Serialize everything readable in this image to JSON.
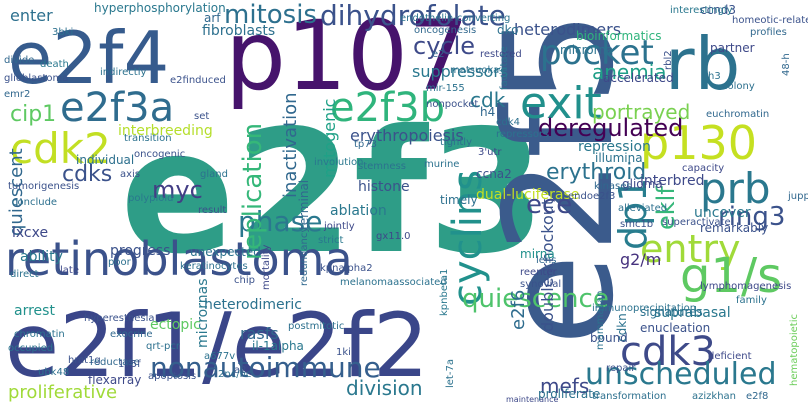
{
  "word_cloud": {
    "words": [
      {
        "text": "e2f3",
        "color": "#2e9d87"
      },
      {
        "text": "e2f5",
        "color": "#3b5b8c"
      },
      {
        "text": "p107",
        "color": "#46136c"
      },
      {
        "text": "e2f4",
        "color": "#365b8d"
      },
      {
        "text": "e2f1/e2f2",
        "color": "#3a4689"
      },
      {
        "text": "retinoblastoma",
        "color": "#3b528b"
      },
      {
        "text": "rb",
        "color": "#2c728e"
      },
      {
        "text": "e2f3a",
        "color": "#2f6c8e"
      },
      {
        "text": "e2f3b",
        "color": "#2fb47c"
      },
      {
        "text": "exit",
        "color": "#21908c"
      },
      {
        "text": "cdk2",
        "color": "#c2df23"
      },
      {
        "text": "p130",
        "color": "#c5e021"
      },
      {
        "text": "prb",
        "color": "#2a788e"
      },
      {
        "text": "pocket",
        "color": "#2c728e"
      },
      {
        "text": "entry",
        "color": "#a0da39"
      },
      {
        "text": "g1/s",
        "color": "#5ec962"
      },
      {
        "text": "cdk3",
        "color": "#3e4a89"
      },
      {
        "text": "unscheduled",
        "color": "#2a788e"
      },
      {
        "text": "dihydrofolate",
        "color": "#3b528b"
      },
      {
        "text": "cyclins",
        "color": "#21918c"
      },
      {
        "text": "mitosis",
        "color": "#2d708e"
      },
      {
        "text": "deregulated",
        "color": "#440154"
      },
      {
        "text": "nonautoimmune",
        "color": "#355f8d"
      },
      {
        "text": "quiescence",
        "color": "#4ec36b"
      },
      {
        "text": "dp1",
        "color": "#287d8e"
      },
      {
        "text": "phase",
        "color": "#2a788e"
      },
      {
        "text": "replication",
        "color": "#35b779"
      },
      {
        "text": "ring3",
        "color": "#3b528b"
      },
      {
        "text": "ece",
        "color": "#3e4989"
      },
      {
        "text": "cycle",
        "color": "#3e4a89"
      },
      {
        "text": "myc",
        "color": "#433e85"
      },
      {
        "text": "anemia",
        "color": "#1f9f88"
      },
      {
        "text": "portrayed",
        "color": "#7ad151"
      },
      {
        "text": "erythroid",
        "color": "#2c728e"
      },
      {
        "text": "cdks",
        "color": "#3b528b"
      },
      {
        "text": "cip1",
        "color": "#5ec962"
      },
      {
        "text": "eklf",
        "color": "#35b779"
      },
      {
        "text": "division",
        "color": "#2a788e"
      },
      {
        "text": "quiescent",
        "color": "#31688e"
      },
      {
        "text": "suppressors",
        "color": "#2a788e"
      },
      {
        "text": "double-knockout",
        "color": "#3b528b"
      },
      {
        "text": "mefs",
        "color": "#3e4989"
      },
      {
        "text": "rasfs",
        "color": "#31688e"
      },
      {
        "text": "e2f6",
        "color": "#2f6c8e"
      },
      {
        "text": "g2/m",
        "color": "#46327e"
      },
      {
        "text": "proliferative",
        "color": "#a0da39"
      },
      {
        "text": "mitogenic",
        "color": "#1fa187"
      },
      {
        "text": "cdk",
        "color": "#2a788e"
      },
      {
        "text": "inactivation",
        "color": "#31688e"
      },
      {
        "text": "interbreeding",
        "color": "#b5de2b"
      },
      {
        "text": "heterodimeric",
        "color": "#2c728e"
      },
      {
        "text": "erythropoiesis",
        "color": "#3b528b"
      },
      {
        "text": "dual-luciferase",
        "color": "#c2df23"
      },
      {
        "text": "enter",
        "color": "#2d708e"
      },
      {
        "text": "fibroblasts",
        "color": "#2d708e"
      },
      {
        "text": "hyperphosphorylation",
        "color": "#2a788e"
      },
      {
        "text": "heterodimers",
        "color": "#3b528b"
      },
      {
        "text": "bioinformatics",
        "color": "#2fb47c"
      },
      {
        "text": "accelerated",
        "color": "#3e4989"
      },
      {
        "text": "terminal",
        "color": "#31688e"
      },
      {
        "text": "progress",
        "color": "#3b528b"
      },
      {
        "text": "ability",
        "color": "#2a788e"
      },
      {
        "text": "ectopic",
        "color": "#5ec962"
      },
      {
        "text": "arrest",
        "color": "#21918c"
      },
      {
        "text": "microrna",
        "color": "#2c728e"
      },
      {
        "text": "micrornas",
        "color": "#2a788e"
      },
      {
        "text": "histone",
        "color": "#3b528b"
      },
      {
        "text": "ablation",
        "color": "#2a788e"
      },
      {
        "text": "ccna2",
        "color": "#3b528b"
      },
      {
        "text": "mirna",
        "color": "#21918c"
      },
      {
        "text": "uncover",
        "color": "#2a788e"
      },
      {
        "text": "lxcxe",
        "color": "#3e4989"
      },
      {
        "text": "individual",
        "color": "#2d708e"
      },
      {
        "text": "ccnd3",
        "color": "#3b528b"
      },
      {
        "text": "arf",
        "color": "#31688e"
      },
      {
        "text": "dko",
        "color": "#2d708e"
      },
      {
        "text": "cdkn",
        "color": "#2c728e"
      },
      {
        "text": "timely",
        "color": "#2d708e"
      },
      {
        "text": "interbred",
        "color": "#3e4989"
      },
      {
        "text": "remarkably",
        "color": "#3b528b"
      },
      {
        "text": "repression",
        "color": "#2a788e"
      },
      {
        "text": "illumina",
        "color": "#2c728e"
      },
      {
        "text": "glioma",
        "color": "#3e4989"
      },
      {
        "text": "suprabasal",
        "color": "#2a788e"
      },
      {
        "text": "signatures",
        "color": "#2c728e"
      },
      {
        "text": "enucleation",
        "color": "#3b528b"
      },
      {
        "text": "transformation",
        "color": "#2d708e"
      },
      {
        "text": "proliferate",
        "color": "#2c728e"
      },
      {
        "text": "azizkhan",
        "color": "#2c728e"
      },
      {
        "text": "e2f8",
        "color": "#31688e"
      },
      {
        "text": "interestingly",
        "color": "#2a788e"
      },
      {
        "text": "hematopoietic",
        "color": "#6ccd5a"
      },
      {
        "text": "partner",
        "color": "#3e4989"
      },
      {
        "text": "profiles",
        "color": "#31688e"
      },
      {
        "text": "colony",
        "color": "#2d708e"
      },
      {
        "text": "capacity",
        "color": "#3e4989"
      },
      {
        "text": "euchromatin",
        "color": "#31688e"
      },
      {
        "text": "tumorigenesis",
        "color": "#3b528b"
      },
      {
        "text": "conclude",
        "color": "#2d708e"
      },
      {
        "text": "unexpected",
        "color": "#2c728e"
      },
      {
        "text": "keratinocytes",
        "color": "#2d708e"
      },
      {
        "text": "chip",
        "color": "#3b528b"
      },
      {
        "text": "postmitotic",
        "color": "#2d708e"
      },
      {
        "text": "immunoprecipitation",
        "color": "#2c728e"
      },
      {
        "text": "synovial",
        "color": "#3b528b"
      },
      {
        "text": "reenter",
        "color": "#3e4989"
      },
      {
        "text": "lens",
        "color": "#31688e"
      },
      {
        "text": "strict",
        "color": "#2a788e"
      },
      {
        "text": "jointly",
        "color": "#3e4989"
      },
      {
        "text": "stemness",
        "color": "#2c728e"
      },
      {
        "text": "involution",
        "color": "#2a788e"
      },
      {
        "text": "murine",
        "color": "#2c728e"
      },
      {
        "text": "kinases",
        "color": "#31688e"
      },
      {
        "text": "endoe2f3",
        "color": "#3b528b"
      },
      {
        "text": "alleviated",
        "color": "#2d708e"
      },
      {
        "text": "superactivate",
        "color": "#3b528b"
      },
      {
        "text": "deficient",
        "color": "#3e4989"
      },
      {
        "text": "repair",
        "color": "#3b528b"
      },
      {
        "text": "bound",
        "color": "#3b528b"
      },
      {
        "text": "mammalian",
        "color": "#2c728e"
      },
      {
        "text": "il-1alpha",
        "color": "#2a788e"
      },
      {
        "text": "1ki",
        "color": "#3b528b"
      },
      {
        "text": "a2",
        "color": "#3b528b"
      },
      {
        "text": "a677v",
        "color": "#2c728e"
      },
      {
        "text": "qrt-pcr",
        "color": "#2d708e"
      },
      {
        "text": "flexarray",
        "color": "#3e4989"
      },
      {
        "text": "apoptosis",
        "color": "#3b528b"
      },
      {
        "text": "chromatin",
        "color": "#2c728e"
      },
      {
        "text": "exocrine",
        "color": "#31688e"
      },
      {
        "text": "hyperesthesia",
        "color": "#3b528b"
      },
      {
        "text": "occupied",
        "color": "#2c728e"
      },
      {
        "text": "hmt1g",
        "color": "#3b528b"
      },
      {
        "text": "ubk48",
        "color": "#2d708e"
      },
      {
        "text": "reductase",
        "color": "#31688e"
      },
      {
        "text": "direct",
        "color": "#2c728e"
      },
      {
        "text": "late",
        "color": "#3e4989"
      },
      {
        "text": "glioblastoma",
        "color": "#3b528b"
      },
      {
        "text": "divide",
        "color": "#31688e"
      },
      {
        "text": "death",
        "color": "#2a788e"
      },
      {
        "text": "e2finduced",
        "color": "#3b528b"
      },
      {
        "text": "endothelin-converting",
        "color": "#2c728e"
      },
      {
        "text": "oncogenesis",
        "color": "#31688e"
      },
      {
        "text": "restored",
        "color": "#3e4989"
      },
      {
        "text": "matsuoka",
        "color": "#2d708e"
      },
      {
        "text": "mir-155",
        "color": "#2c728e"
      },
      {
        "text": "nonpocket",
        "color": "#3b528b"
      },
      {
        "text": "h4",
        "color": "#31688e"
      },
      {
        "text": "repressors",
        "color": "#2c728e"
      },
      {
        "text": "3'utr",
        "color": "#3e4989"
      },
      {
        "text": "tightly",
        "color": "#2d708e"
      },
      {
        "text": "tp73",
        "color": "#31688e"
      },
      {
        "text": "gland",
        "color": "#2c728e"
      },
      {
        "text": "axis",
        "color": "#3b528b"
      },
      {
        "text": "polyploid",
        "color": "#2a788e"
      },
      {
        "text": "result",
        "color": "#3b528b"
      },
      {
        "text": "poor",
        "color": "#2d708e"
      },
      {
        "text": "transition",
        "color": "#2c728e"
      },
      {
        "text": "oncogenic",
        "color": "#3b528b"
      },
      {
        "text": "redundancy",
        "color": "#31688e"
      },
      {
        "text": "kpnalpha2",
        "color": "#3b528b"
      },
      {
        "text": "melanomaassociated",
        "color": "#2c728e"
      },
      {
        "text": "gx11.0",
        "color": "#3e4989"
      },
      {
        "text": "kpnbeta1",
        "color": "#2a788e"
      },
      {
        "text": "smc1b",
        "color": "#3b528b"
      },
      {
        "text": "jupp",
        "color": "#31688e"
      },
      {
        "text": "family",
        "color": "#2c728e"
      },
      {
        "text": "lymphomagenesis",
        "color": "#3e4989"
      },
      {
        "text": "3bki",
        "color": "#2d708e"
      },
      {
        "text": "homeotic-related",
        "color": "#3b528b"
      },
      {
        "text": "48-h",
        "color": "#31688e"
      },
      {
        "text": "h3",
        "color": "#2c728e"
      },
      {
        "text": "rbl2",
        "color": "#3b528b"
      },
      {
        "text": "let-7a",
        "color": "#2c728e"
      },
      {
        "text": "mortality",
        "color": "#3e4989"
      },
      {
        "text": "2nc/nc",
        "color": "#2d708e"
      },
      {
        "text": "175f",
        "color": "#3b528b"
      },
      {
        "text": "e2",
        "color": "#31688e"
      },
      {
        "text": "facilitate",
        "color": "#2c728e"
      },
      {
        "text": "set",
        "color": "#3b528b"
      },
      {
        "text": "cdk4",
        "color": "#2d708e"
      },
      {
        "text": "emr2",
        "color": "#31688e"
      },
      {
        "text": "indirectly",
        "color": "#2c728e"
      },
      {
        "text": "maintenance",
        "color": "#3e4989"
      }
    ]
  }
}
